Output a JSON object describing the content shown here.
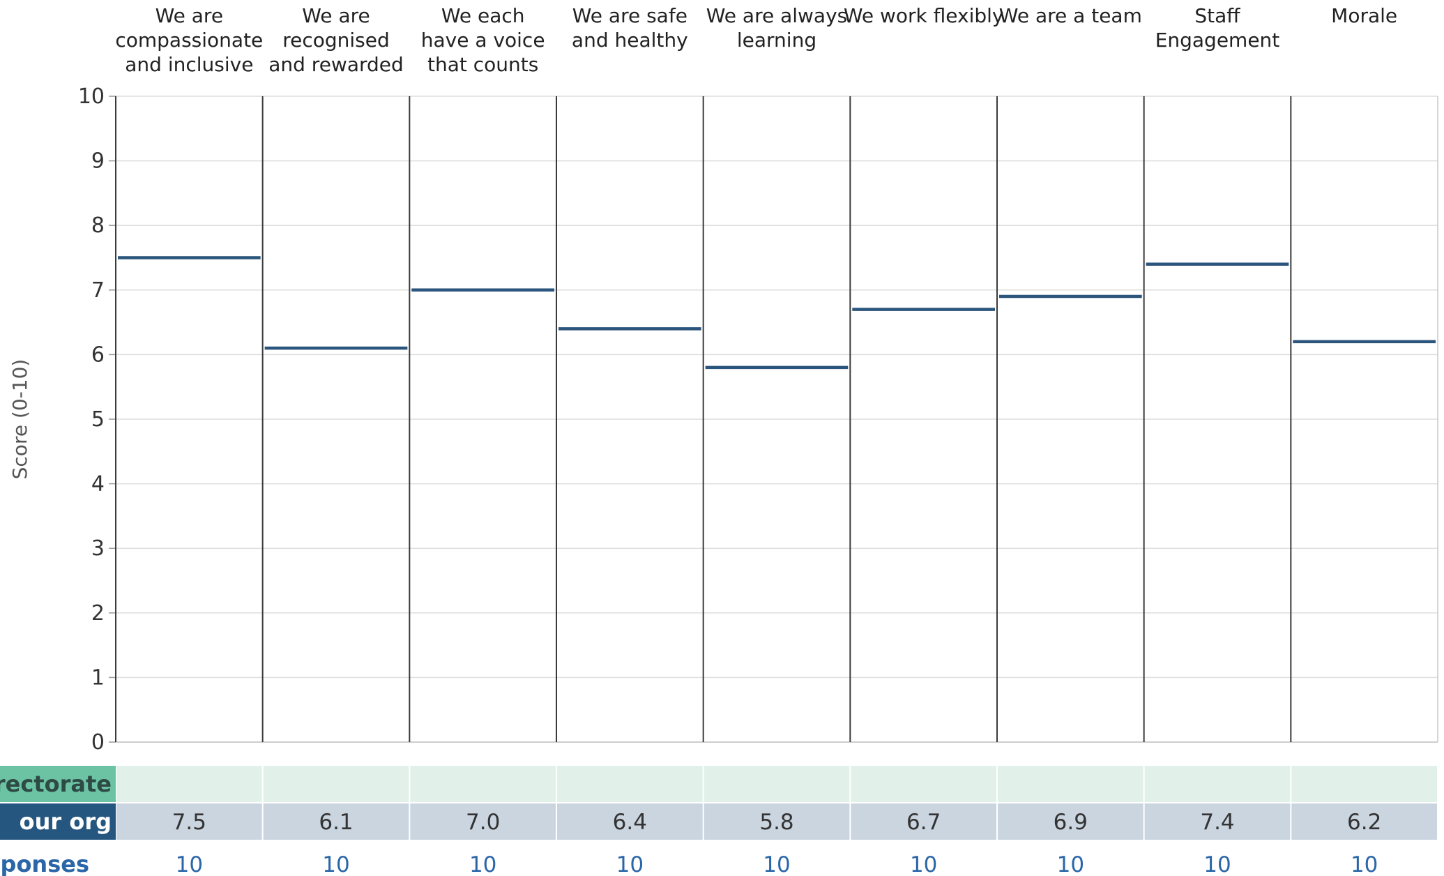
{
  "chart_data": {
    "type": "bar",
    "categories": [
      "We are compassionate and inclusive",
      "We are recognised and rewarded",
      "We each have a voice that counts",
      "We are safe and healthy",
      "We are always learning",
      "We work flexibly",
      "We are a team",
      "Staff Engagement",
      "Morale"
    ],
    "category_lines": [
      [
        "We are",
        "compassionate",
        "and inclusive"
      ],
      [
        "We are",
        "recognised",
        "and rewarded"
      ],
      [
        "We each",
        "have a voice",
        "that counts"
      ],
      [
        "We are safe",
        "and healthy"
      ],
      [
        "We are always",
        "learning"
      ],
      [
        "We work flexibly"
      ],
      [
        "We are a team"
      ],
      [
        "Staff",
        "Engagement"
      ],
      [
        "Morale"
      ]
    ],
    "series": [
      {
        "name": "Your org",
        "values": [
          7.5,
          6.1,
          7.0,
          6.4,
          5.8,
          6.7,
          6.9,
          7.4,
          6.2
        ]
      }
    ],
    "ylabel": "Score (0-10)",
    "ylim": [
      0,
      10
    ],
    "yticks": [
      0,
      1,
      2,
      3,
      4,
      5,
      6,
      7,
      8,
      9,
      10
    ],
    "grid": true,
    "mark_color": "#2b557c",
    "table": {
      "rows": [
        {
          "label": "Directorate",
          "visible_label": "irectorate",
          "values": [
            "",
            "",
            "",
            "",
            "",
            "",
            "",
            "",
            ""
          ],
          "label_bg": "#6cc3a4",
          "label_color": "#2e4a44",
          "cell_bg": "#e1f1e9"
        },
        {
          "label": "Your org",
          "visible_label": "our org",
          "values": [
            "7.5",
            "6.1",
            "7.0",
            "6.4",
            "5.8",
            "6.7",
            "6.9",
            "7.4",
            "6.2"
          ],
          "label_bg": "#25567f",
          "label_color": "#ffffff",
          "cell_bg": "#cad5e0"
        }
      ],
      "responses": {
        "label": "Responses",
        "visible_label": "esponses",
        "values": [
          "10",
          "10",
          "10",
          "10",
          "10",
          "10",
          "10",
          "10",
          "10"
        ],
        "color": "#2a66a8"
      }
    }
  }
}
